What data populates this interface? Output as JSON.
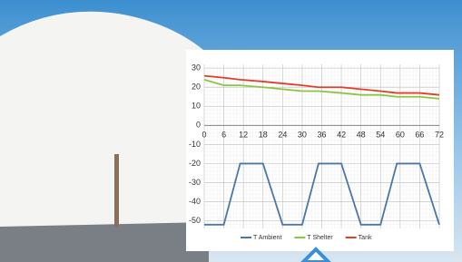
{
  "chart_data": {
    "type": "line",
    "x": [
      0,
      6,
      11,
      18,
      24,
      30,
      35,
      42,
      48,
      54,
      59,
      66,
      72
    ],
    "series": [
      {
        "name": "T Ambient",
        "color": "#4a78a8",
        "values": [
          -52,
          -52,
          -20,
          -20,
          -52,
          -52,
          -20,
          -20,
          -52,
          -52,
          -20,
          -20,
          -52
        ]
      },
      {
        "name": "T Shelter",
        "color": "#8cc63f",
        "values": [
          24,
          21,
          21,
          20,
          19,
          18,
          18,
          17,
          16,
          16,
          15,
          15,
          14
        ]
      },
      {
        "name": "Tank",
        "color": "#e0402a",
        "values": [
          26,
          25,
          24,
          23,
          22,
          21,
          20,
          20,
          19,
          18,
          17,
          17,
          16
        ]
      }
    ],
    "xlim": [
      0,
      72
    ],
    "xticks": [
      0,
      6,
      12,
      18,
      24,
      30,
      36,
      42,
      48,
      54,
      60,
      66,
      72
    ],
    "ylim": [
      -54,
      32
    ],
    "yticks": [
      30,
      20,
      10,
      0,
      -10,
      -20,
      -30,
      -40,
      -50
    ],
    "grid": true,
    "legend": "bottom"
  }
}
